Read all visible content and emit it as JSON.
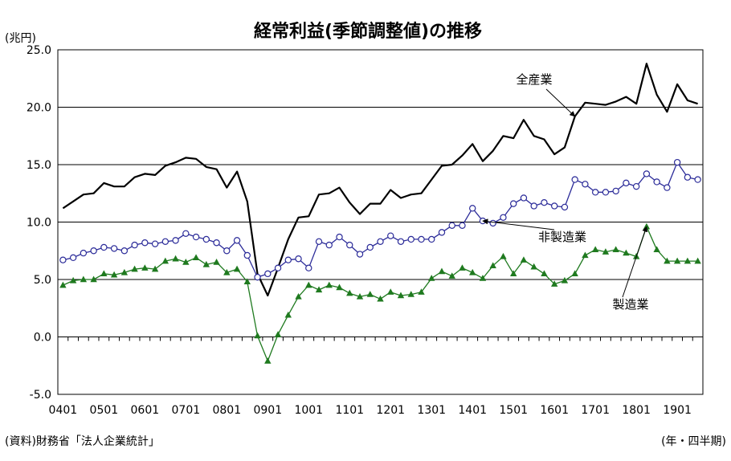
{
  "chart_data": {
    "type": "line",
    "title": "経常利益(季節調整値)の推移",
    "y_unit": "(兆円)",
    "source": "(資料)財務省「法人企業統計」",
    "x_unit": "(年・四半期)",
    "ylim": [
      -5.0,
      25.0
    ],
    "y_ticks": [
      "25.0",
      "20.0",
      "15.0",
      "10.0",
      "5.0",
      "0.0",
      "-5.0"
    ],
    "x_tick_labels": [
      "0401",
      "0501",
      "0601",
      "0701",
      "0801",
      "0901",
      "1001",
      "1101",
      "1201",
      "1301",
      "1401",
      "1501",
      "1601",
      "1701",
      "1801",
      "1901"
    ],
    "grid": "horizontal",
    "series": [
      {
        "name": "全産業",
        "color": "#000000",
        "marker": "none",
        "values": [
          11.2,
          11.8,
          12.4,
          12.5,
          13.4,
          13.1,
          13.1,
          13.9,
          14.2,
          14.1,
          14.9,
          15.2,
          15.6,
          15.5,
          14.8,
          14.6,
          13.0,
          14.4,
          11.8,
          5.5,
          3.6,
          6.0,
          8.5,
          10.4,
          10.5,
          12.4,
          12.5,
          13.0,
          11.7,
          10.7,
          11.6,
          11.6,
          12.8,
          12.1,
          12.4,
          12.5,
          13.7,
          14.9,
          15.0,
          15.8,
          16.8,
          15.3,
          16.2,
          17.5,
          17.3,
          18.9,
          17.5,
          17.2,
          15.9,
          16.5,
          19.2,
          20.4,
          20.3,
          20.2,
          20.5,
          20.9,
          20.3,
          23.8,
          21.1,
          19.6,
          22.0,
          20.6,
          20.3
        ]
      },
      {
        "name": "非製造業",
        "color": "#2b2b99",
        "marker": "circle",
        "values": [
          6.7,
          6.9,
          7.3,
          7.5,
          7.8,
          7.7,
          7.5,
          8.0,
          8.2,
          8.1,
          8.3,
          8.4,
          9.0,
          8.7,
          8.5,
          8.2,
          7.5,
          8.4,
          7.1,
          5.2,
          5.5,
          6.0,
          6.7,
          6.8,
          6.0,
          8.3,
          8.0,
          8.7,
          8.0,
          7.2,
          7.8,
          8.3,
          8.8,
          8.3,
          8.5,
          8.5,
          8.5,
          9.1,
          9.7,
          9.7,
          11.2,
          10.1,
          9.9,
          10.4,
          11.6,
          12.1,
          11.4,
          11.7,
          11.4,
          11.3,
          13.7,
          13.3,
          12.6,
          12.6,
          12.7,
          13.4,
          13.1,
          14.2,
          13.5,
          13.0,
          15.2,
          13.9,
          13.7
        ]
      },
      {
        "name": "製造業",
        "color": "#1f7a1f",
        "marker": "triangle",
        "values": [
          4.5,
          4.9,
          5.0,
          5.0,
          5.5,
          5.4,
          5.6,
          5.9,
          6.0,
          5.9,
          6.6,
          6.8,
          6.5,
          6.9,
          6.3,
          6.5,
          5.6,
          5.9,
          4.8,
          0.1,
          -2.1,
          0.2,
          1.9,
          3.5,
          4.5,
          4.1,
          4.5,
          4.3,
          3.8,
          3.5,
          3.7,
          3.3,
          3.9,
          3.6,
          3.7,
          3.9,
          5.1,
          5.7,
          5.3,
          6.0,
          5.6,
          5.1,
          6.2,
          7.0,
          5.5,
          6.7,
          6.1,
          5.5,
          4.6,
          4.9,
          5.5,
          7.1,
          7.6,
          7.4,
          7.6,
          7.3,
          7.0,
          9.6,
          7.6,
          6.6,
          6.6,
          6.6,
          6.6
        ]
      }
    ]
  }
}
